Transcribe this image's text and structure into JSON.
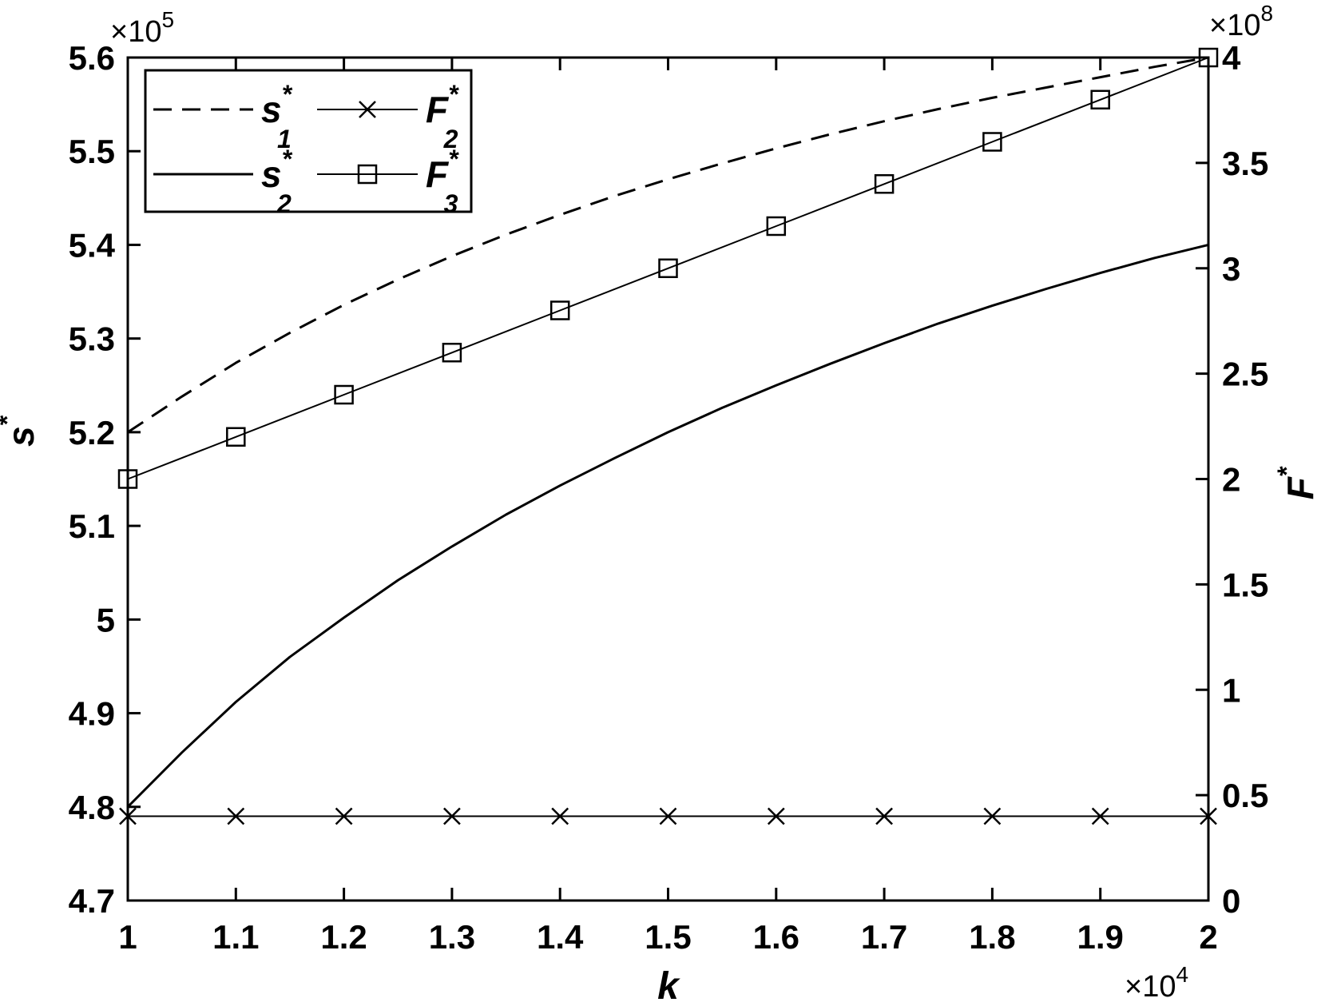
{
  "chart_data": {
    "type": "line",
    "title": "",
    "xlabel": "k",
    "x_exponent": {
      "base": "×10",
      "exp": "4"
    },
    "xlim": [
      1,
      2
    ],
    "x_ticks": [
      "1",
      "1.1",
      "1.2",
      "1.3",
      "1.4",
      "1.5",
      "1.6",
      "1.7",
      "1.8",
      "1.9",
      "2"
    ],
    "x_tick_values": [
      1,
      1.1,
      1.2,
      1.3,
      1.4,
      1.5,
      1.6,
      1.7,
      1.8,
      1.9,
      2
    ],
    "left_axis": {
      "label_base": "s",
      "label_sup": "*",
      "exponent": {
        "base": "×10",
        "exp": "5"
      },
      "lim": [
        4.7,
        5.6
      ],
      "ticks": [
        "5.6",
        "5.5",
        "5.4",
        "5.3",
        "5.2",
        "5.1",
        "5",
        "4.9",
        "4.8",
        "4.7"
      ],
      "tick_values": [
        5.6,
        5.5,
        5.4,
        5.3,
        5.2,
        5.1,
        5.0,
        4.9,
        4.8,
        4.7
      ]
    },
    "right_axis": {
      "label_base": "F",
      "label_sup": "*",
      "exponent": {
        "base": "×10",
        "exp": "8"
      },
      "lim": [
        0,
        4
      ],
      "ticks": [
        "4",
        "3.5",
        "3",
        "2.5",
        "2",
        "1.5",
        "1",
        "0.5",
        "0"
      ],
      "tick_values": [
        4,
        3.5,
        3,
        2.5,
        2,
        1.5,
        1,
        0.5,
        0
      ]
    },
    "grid": false,
    "legend_position": "top-left",
    "colors": {
      "foreground": "#000000",
      "background": "#ffffff"
    },
    "series": [
      {
        "name": "s1",
        "legend": {
          "base": "s",
          "sub": "1",
          "sup": "*"
        },
        "axis": "left",
        "line": "dashed",
        "marker": "none",
        "x": [
          1,
          1.05,
          1.1,
          1.15,
          1.2,
          1.25,
          1.3,
          1.35,
          1.4,
          1.45,
          1.5,
          1.55,
          1.6,
          1.65,
          1.7,
          1.75,
          1.8,
          1.85,
          1.9,
          1.95,
          2
        ],
        "y": [
          5.2,
          5.238,
          5.274,
          5.306,
          5.336,
          5.363,
          5.388,
          5.411,
          5.432,
          5.452,
          5.47,
          5.487,
          5.503,
          5.518,
          5.532,
          5.545,
          5.557,
          5.568,
          5.579,
          5.59,
          5.6
        ]
      },
      {
        "name": "s2",
        "legend": {
          "base": "s",
          "sub": "2",
          "sup": "*"
        },
        "axis": "left",
        "line": "solid",
        "marker": "none",
        "x": [
          1,
          1.05,
          1.1,
          1.15,
          1.2,
          1.25,
          1.3,
          1.35,
          1.4,
          1.45,
          1.5,
          1.55,
          1.6,
          1.65,
          1.7,
          1.75,
          1.8,
          1.85,
          1.9,
          1.95,
          2
        ],
        "y": [
          4.8,
          4.858,
          4.912,
          4.96,
          5.002,
          5.042,
          5.078,
          5.112,
          5.143,
          5.172,
          5.2,
          5.226,
          5.25,
          5.273,
          5.295,
          5.316,
          5.335,
          5.353,
          5.37,
          5.386,
          5.4
        ]
      },
      {
        "name": "F2",
        "legend": {
          "base": "F",
          "sub": "2",
          "sup": "*"
        },
        "axis": "right",
        "line": "solid",
        "marker": "x",
        "x": [
          1,
          1.1,
          1.2,
          1.3,
          1.4,
          1.5,
          1.6,
          1.7,
          1.8,
          1.9,
          2
        ],
        "y": [
          0.4,
          0.4,
          0.4,
          0.4,
          0.4,
          0.4,
          0.4,
          0.4,
          0.4,
          0.4,
          0.4
        ]
      },
      {
        "name": "F3",
        "legend": {
          "base": "F",
          "sub": "3",
          "sup": "*"
        },
        "axis": "right",
        "line": "solid",
        "marker": "square",
        "x": [
          1,
          1.1,
          1.2,
          1.3,
          1.4,
          1.5,
          1.6,
          1.7,
          1.8,
          1.9,
          2
        ],
        "y": [
          2.0,
          2.2,
          2.4,
          2.6,
          2.8,
          3.0,
          3.2,
          3.4,
          3.6,
          3.8,
          4.0
        ]
      }
    ]
  }
}
